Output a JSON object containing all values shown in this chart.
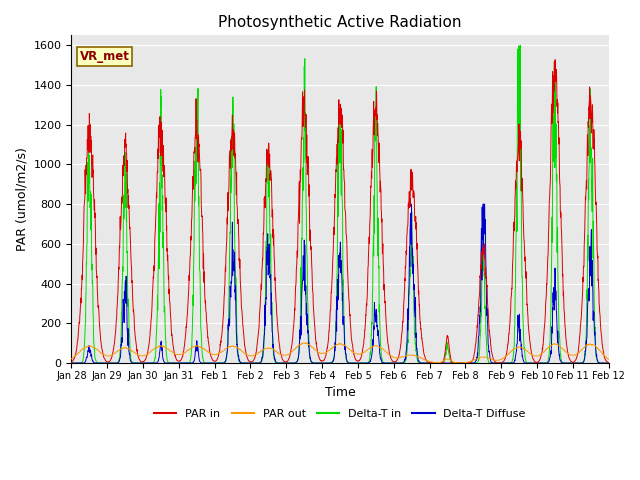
{
  "title": "Photosynthetic Active Radiation",
  "xlabel": "Time",
  "ylabel": "PAR (umol/m2/s)",
  "ylim": [
    0,
    1650
  ],
  "yticks": [
    0,
    200,
    400,
    600,
    800,
    1000,
    1200,
    1400,
    1600
  ],
  "annotation_text": "VR_met",
  "colors": {
    "PAR_in": "#dd0000",
    "PAR_out": "#ff9900",
    "Delta_T_in": "#00dd00",
    "Delta_T_Diffuse": "#0000cc"
  },
  "legend_labels": [
    "PAR in",
    "PAR out",
    "Delta-T in",
    "Delta-T Diffuse"
  ],
  "xtick_labels": [
    "Jan 28",
    "Jan 29",
    "Jan 30",
    "Jan 31",
    "Feb 1",
    "Feb 2",
    "Feb 3",
    "Feb 4",
    "Feb 5",
    "Feb 6",
    "Feb 7",
    "Feb 8",
    "Feb 9",
    "Feb 10",
    "Feb 11",
    "Feb 12"
  ],
  "background_color": "#e8e8e8",
  "num_days": 15,
  "points_per_day": 144,
  "day_peaks_PAR_in": [
    1170,
    1040,
    1160,
    1160,
    1160,
    1050,
    1250,
    1260,
    1310,
    980,
    130,
    570,
    1090,
    1490,
    1360
  ],
  "day_peaks_PAR_out": [
    85,
    75,
    85,
    85,
    85,
    75,
    100,
    95,
    85,
    40,
    20,
    30,
    80,
    95,
    95
  ],
  "day_peaks_DeltaT_in": [
    1170,
    860,
    1150,
    1210,
    1210,
    950,
    1190,
    1190,
    1200,
    590,
    90,
    520,
    1380,
    1430,
    1260
  ],
  "day_peaks_DeltaT_diff": [
    80,
    350,
    80,
    80,
    580,
    550,
    500,
    570,
    280,
    640,
    0,
    760,
    200,
    380,
    520
  ],
  "day_width_PAR_in": [
    0.3,
    0.28,
    0.3,
    0.3,
    0.3,
    0.28,
    0.3,
    0.3,
    0.3,
    0.28,
    0.1,
    0.22,
    0.28,
    0.28,
    0.28
  ],
  "day_width_Green": [
    0.12,
    0.12,
    0.12,
    0.12,
    0.12,
    0.12,
    0.12,
    0.12,
    0.12,
    0.12,
    0.08,
    0.1,
    0.12,
    0.12,
    0.12
  ],
  "day_width_Blue": [
    0.1,
    0.12,
    0.08,
    0.08,
    0.14,
    0.14,
    0.14,
    0.14,
    0.12,
    0.14,
    0.06,
    0.14,
    0.1,
    0.12,
    0.14
  ]
}
